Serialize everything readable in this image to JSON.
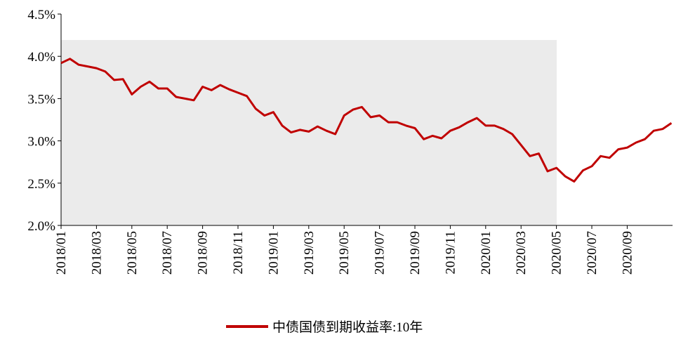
{
  "chart_data": {
    "type": "line",
    "categories": [
      "2018/01",
      null,
      null,
      null,
      "2018/03",
      null,
      null,
      null,
      "2018/05",
      null,
      null,
      null,
      "2018/07",
      null,
      null,
      null,
      "2018/09",
      null,
      null,
      null,
      "2018/11",
      null,
      null,
      null,
      "2019/01",
      null,
      null,
      null,
      "2019/03",
      null,
      null,
      null,
      "2019/05",
      null,
      null,
      null,
      "2019/07",
      null,
      null,
      null,
      "2019/09",
      null,
      null,
      null,
      "2019/11",
      null,
      null,
      null,
      "2020/01",
      null,
      null,
      null,
      "2020/03",
      null,
      null,
      null,
      "2020/05",
      null,
      null,
      null,
      "2020/07",
      null,
      null,
      null,
      "2020/09",
      null,
      null,
      null,
      null,
      null
    ],
    "series": [
      {
        "name": "中债国债到期收益率:10年",
        "color": "#c00000",
        "values": [
          3.92,
          3.97,
          3.9,
          3.88,
          3.86,
          3.82,
          3.72,
          3.73,
          3.55,
          3.64,
          3.7,
          3.62,
          3.62,
          3.52,
          3.5,
          3.48,
          3.64,
          3.6,
          3.66,
          3.61,
          3.57,
          3.53,
          3.38,
          3.3,
          3.34,
          3.18,
          3.1,
          3.13,
          3.11,
          3.17,
          3.12,
          3.08,
          3.3,
          3.37,
          3.4,
          3.28,
          3.3,
          3.22,
          3.22,
          3.18,
          3.15,
          3.02,
          3.06,
          3.03,
          3.12,
          3.16,
          3.22,
          3.27,
          3.18,
          3.18,
          3.14,
          3.08,
          2.95,
          2.82,
          2.85,
          2.64,
          2.68,
          2.58,
          2.52,
          2.65,
          2.7,
          2.82,
          2.8,
          2.9,
          2.92,
          2.98,
          3.02,
          3.12,
          3.14,
          3.21
        ]
      }
    ],
    "ylim": [
      2.0,
      4.5
    ],
    "yticks": [
      {
        "value": 2.0,
        "label": "2.0%"
      },
      {
        "value": 2.5,
        "label": "2.5%"
      },
      {
        "value": 3.0,
        "label": "3.0%"
      },
      {
        "value": 3.5,
        "label": "3.5%"
      },
      {
        "value": 4.0,
        "label": "4.0%"
      },
      {
        "value": 4.5,
        "label": "4.5%"
      }
    ]
  }
}
